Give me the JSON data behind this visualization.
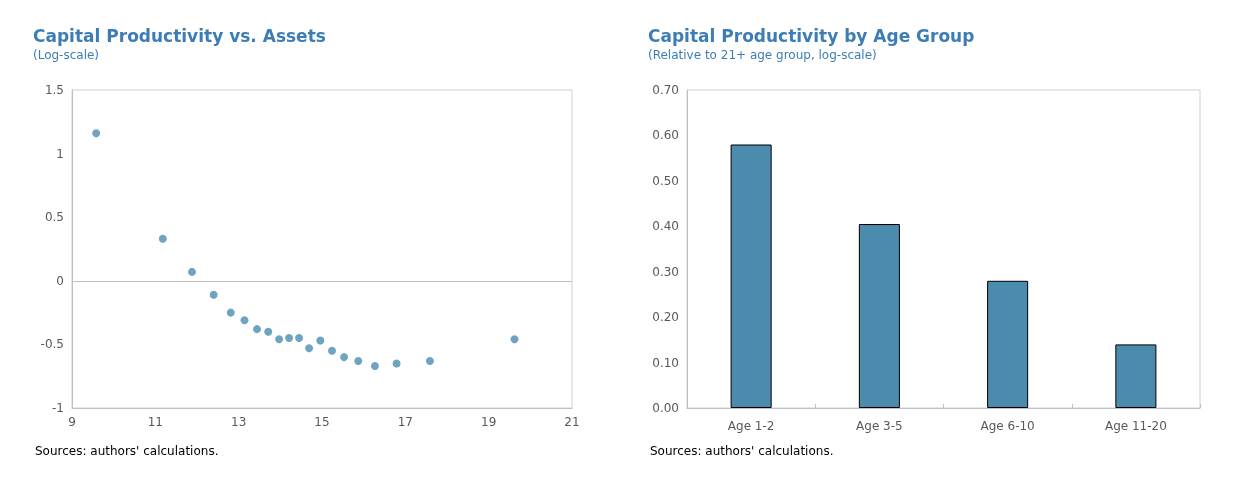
{
  "chart_data": [
    {
      "type": "scatter",
      "title": "Capital Productivity vs. Assets",
      "subtitle": "(Log-scale)",
      "x": [
        9.58,
        11.18,
        11.88,
        12.4,
        12.81,
        13.14,
        13.44,
        13.71,
        13.97,
        14.21,
        14.45,
        14.69,
        14.96,
        15.24,
        15.53,
        15.87,
        16.27,
        16.79,
        17.59,
        19.62
      ],
      "series": [
        {
          "color": "#4a8db0",
          "values": [
            1.16,
            0.33,
            0.07,
            -0.11,
            -0.25,
            -0.31,
            -0.38,
            -0.4,
            -0.46,
            -0.45,
            -0.45,
            -0.53,
            -0.47,
            -0.55,
            -0.6,
            -0.63,
            -0.67,
            -0.65,
            -0.63,
            -0.46
          ]
        }
      ],
      "xlim": [
        9,
        21
      ],
      "xticks": [
        9,
        11,
        13,
        15,
        17,
        19,
        21
      ],
      "ylim": [
        -1,
        1.5
      ],
      "yticks": [
        -1,
        -0.5,
        0,
        0.5,
        1,
        1.5
      ],
      "ref_lines": [
        {
          "axis": "y",
          "value": 0,
          "color": "#bfbfbf"
        }
      ],
      "marker": "circle",
      "grid": false,
      "annotations": [
        "Sources: authors' calculations."
      ]
    },
    {
      "type": "bar",
      "title": "Capital Productivity by Age Group",
      "subtitle": "(Relative to 21+ age group, log-scale)",
      "categories": [
        "Age 1-2",
        "Age 3-5",
        "Age 6-10",
        "Age 11-20"
      ],
      "series": [
        {
          "color": "#4a8bae",
          "values": [
            0.58,
            0.405,
            0.28,
            0.14
          ]
        }
      ],
      "ylim": [
        0,
        0.7
      ],
      "yticks": [
        {
          "value": 0,
          "label": "0.00"
        },
        {
          "value": 0.1,
          "label": "0.10"
        },
        {
          "value": 0.2,
          "label": "0.20"
        },
        {
          "value": 0.3,
          "label": "0.30"
        },
        {
          "value": 0.4,
          "label": "0.40"
        },
        {
          "value": 0.5,
          "label": "0.50"
        },
        {
          "value": 0.6,
          "label": "0.60"
        },
        {
          "value": 0.7,
          "label": "0.70"
        }
      ],
      "grid": false,
      "annotations": [
        "Sources: authors' calculations."
      ]
    }
  ]
}
